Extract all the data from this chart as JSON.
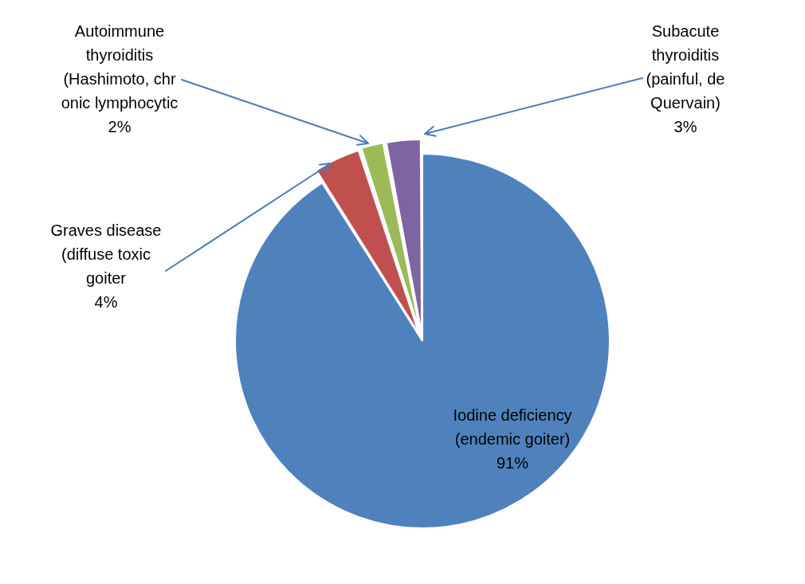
{
  "chart_data": {
    "type": "pie",
    "categories": [
      "Iodine deficiency\n(endemic goiter)",
      "Graves disease\n(diffuse toxic\ngoiter",
      "Autoimmune\nthyroiditis\n(Hashimoto, chr\nonic lymphocytic",
      "Subacute\nthyroiditis\n(painful, de\nQuervain)"
    ],
    "values": [
      91,
      4,
      2,
      3
    ],
    "value_labels": [
      "91%",
      "4%",
      "2%",
      "3%"
    ],
    "colors": [
      "#4f81bd",
      "#c0504d",
      "#9bbb59",
      "#8064a2"
    ],
    "legend": false
  }
}
